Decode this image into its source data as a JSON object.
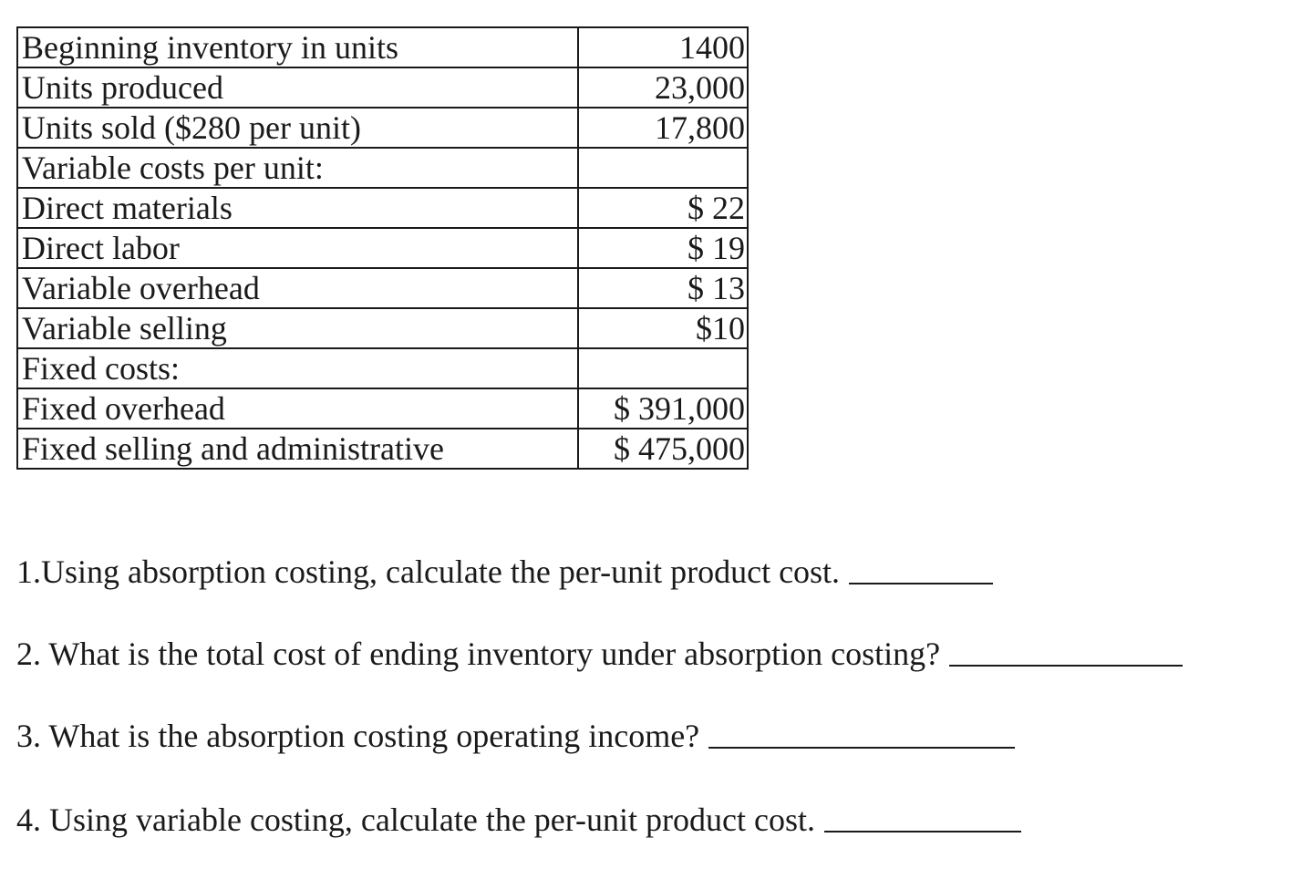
{
  "table": {
    "rows": [
      {
        "label": "Beginning inventory in units",
        "value": "1400"
      },
      {
        "label": "Units produced",
        "value": "23,000"
      },
      {
        "label": "Units sold ($280 per unit)",
        "value": "17,800"
      },
      {
        "label": "Variable costs per unit:",
        "value": ""
      },
      {
        "label": "Direct materials",
        "value": "$ 22"
      },
      {
        "label": "Direct labor",
        "value": "$ 19"
      },
      {
        "label": "Variable overhead",
        "value": "$ 13"
      },
      {
        "label": "Variable selling",
        "value": "$10"
      },
      {
        "label": "Fixed costs:",
        "value": ""
      },
      {
        "label": "Fixed overhead",
        "value": "$ 391,000"
      },
      {
        "label": "Fixed selling and administrative",
        "value": "$ 475,000"
      }
    ]
  },
  "questions": [
    {
      "text": "1.Using absorption costing, calculate the per-unit product cost."
    },
    {
      "text": "2. What is the total cost of ending inventory under absorption costing?"
    },
    {
      "text": "3. What is the absorption costing operating income?"
    },
    {
      "text": "4. Using variable costing, calculate the per-unit product cost."
    }
  ]
}
